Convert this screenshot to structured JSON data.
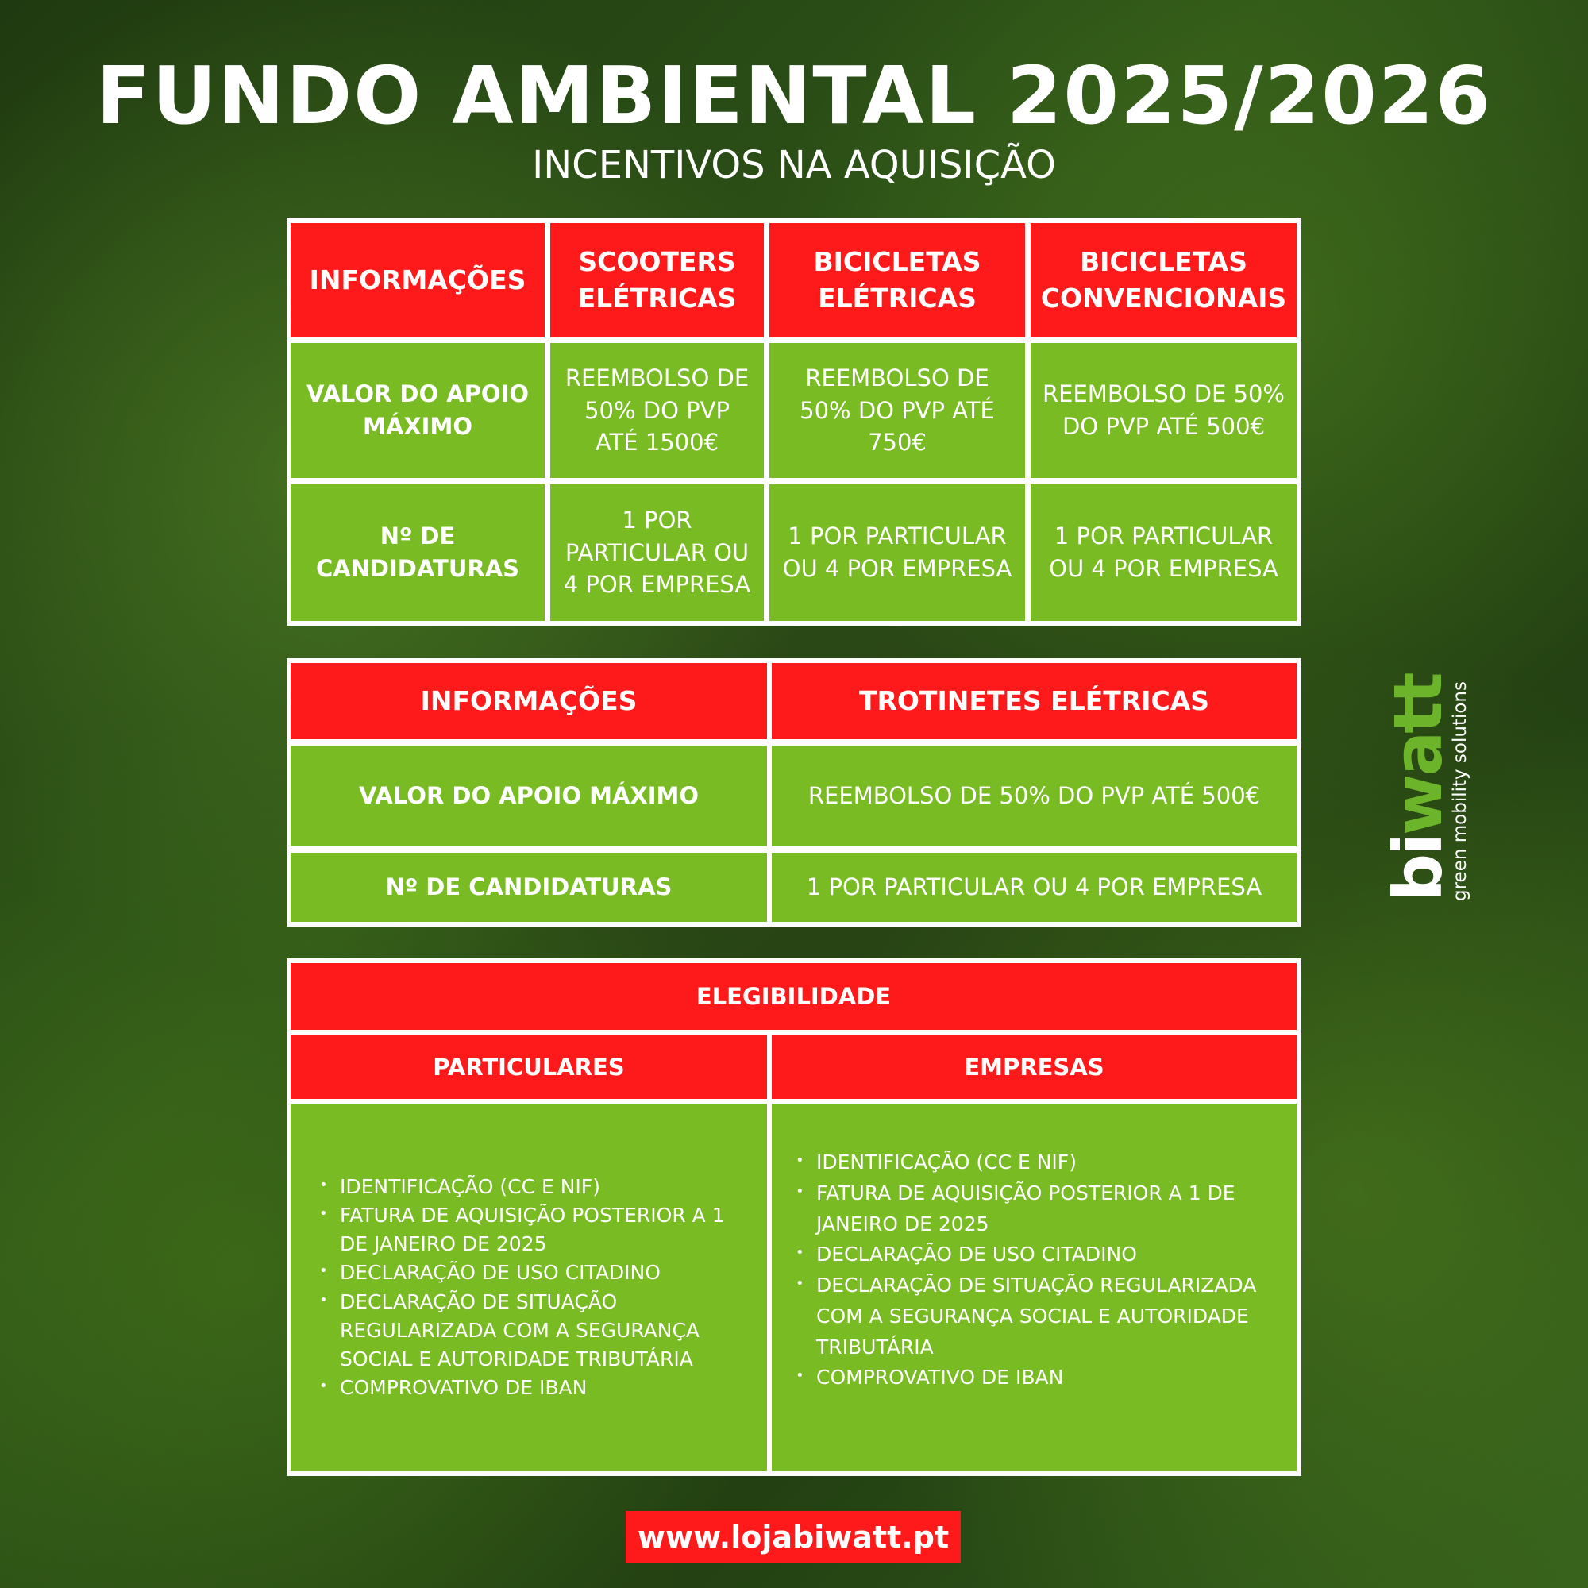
{
  "title": "FUNDO AMBIENTAL 2025/2026",
  "subtitle": "INCENTIVOS NA AQUISIÇÃO",
  "colors": {
    "red": "#fe1a1a",
    "green": "#78bb22"
  },
  "table1": {
    "headers": [
      "INFORMAÇÕES",
      "SCOOTERS ELÉTRICAS",
      "BICICLETAS ELÉTRICAS",
      "BICICLETAS CONVENCIONAIS"
    ],
    "rows": [
      [
        "VALOR DO APOIO MÁXIMO",
        "REEMBOLSO DE 50% DO PVP ATÉ 1500€",
        "REEMBOLSO DE 50% DO PVP ATÉ 750€",
        "REEMBOLSO DE 50% DO PVP ATÉ 500€"
      ],
      [
        "Nº DE CANDIDATURAS",
        "1 POR PARTICULAR OU 4 POR EMPRESA",
        "1 POR PARTICULAR OU 4 POR EMPRESA",
        "1 POR PARTICULAR OU 4 POR EMPRESA"
      ]
    ]
  },
  "table2": {
    "headers": [
      "INFORMAÇÕES",
      "TROTINETES ELÉTRICAS"
    ],
    "rows": [
      [
        "VALOR DO APOIO MÁXIMO",
        "REEMBOLSO DE 50% DO PVP ATÉ 500€"
      ],
      [
        "Nº DE CANDIDATURAS",
        "1 POR PARTICULAR OU 4 POR EMPRESA"
      ]
    ]
  },
  "table3": {
    "title": "ELEGIBILIDADE",
    "headers": [
      "PARTICULARES",
      "EMPRESAS"
    ],
    "particulares": [
      "IDENTIFICAÇÃO (CC E NIF)",
      "FATURA DE AQUISIÇÃO POSTERIOR A 1 DE JANEIRO DE 2025",
      "DECLARAÇÃO DE USO CITADINO",
      "DECLARAÇÃO DE SITUAÇÃO REGULARIZADA COM A SEGURANÇA SOCIAL E AUTORIDADE TRIBUTÁRIA",
      "COMPROVATIVO DE IBAN"
    ],
    "empresas": [
      "IDENTIFICAÇÃO (CC E NIF)",
      "FATURA DE AQUISIÇÃO POSTERIOR A 1 DE JANEIRO DE 2025",
      "DECLARAÇÃO DE USO CITADINO",
      "DECLARAÇÃO DE SITUAÇÃO REGULARIZADA COM A SEGURANÇA SOCIAL E AUTORIDADE TRIBUTÁRIA",
      "COMPROVATIVO DE IBAN"
    ]
  },
  "url": "www.lojabiwatt.pt",
  "logo": {
    "brand_bi": "bi",
    "brand_watt": "watt",
    "tagline": "green mobility solutions"
  }
}
